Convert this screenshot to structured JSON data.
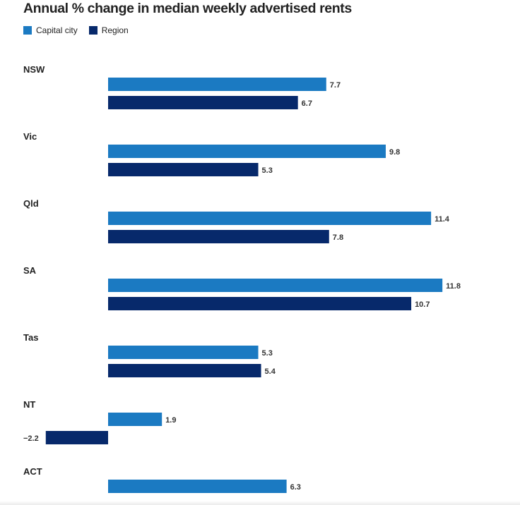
{
  "chart_data": {
    "type": "bar",
    "orientation": "horizontal",
    "title": "Annual % change in median weekly advertised rents",
    "categories": [
      "NSW",
      "Vic",
      "Qld",
      "SA",
      "Tas",
      "NT",
      "ACT"
    ],
    "series": [
      {
        "name": "Capital city",
        "color": "#1b7ac2",
        "values": [
          7.7,
          9.8,
          11.4,
          11.8,
          5.3,
          1.9,
          6.3
        ]
      },
      {
        "name": "Region",
        "color": "#07296b",
        "values": [
          6.7,
          5.3,
          7.8,
          10.7,
          5.4,
          -2.2,
          null
        ]
      }
    ],
    "value_labels": [
      [
        "7.7",
        "9.8",
        "11.4",
        "11.8",
        "5.3",
        "1.9",
        "6.3"
      ],
      [
        "6.7",
        "5.3",
        "7.8",
        "10.7",
        "5.4",
        "−2.2",
        ""
      ]
    ],
    "legend_position": "top-left",
    "grid": false
  }
}
